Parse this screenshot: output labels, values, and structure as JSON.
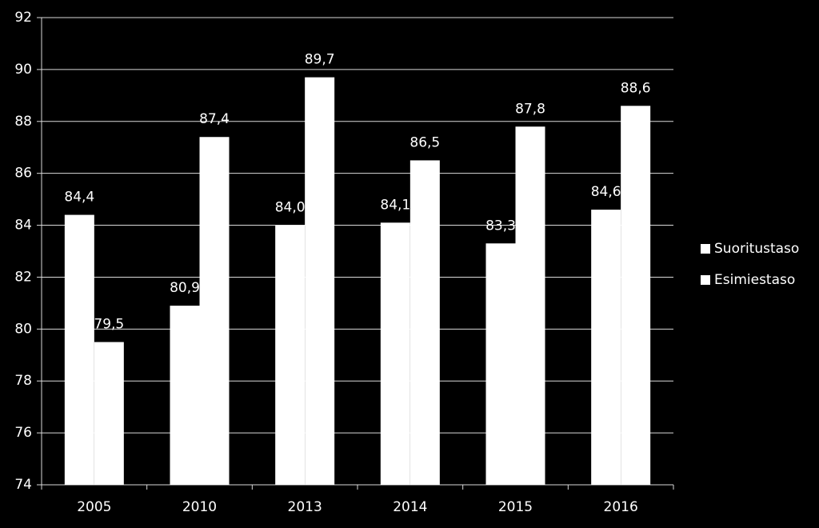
{
  "chart_data": {
    "type": "bar",
    "categories": [
      "2005",
      "2010",
      "2013",
      "2014",
      "2015",
      "2016"
    ],
    "series": [
      {
        "name": "Suoritustaso",
        "color": "#ffffff",
        "values": [
          84.4,
          80.9,
          84.0,
          84.1,
          83.3,
          84.6
        ],
        "value_labels": [
          "84,4",
          "80,9",
          "84,0",
          "84,1",
          "83,3",
          "84,6"
        ]
      },
      {
        "name": "Esimiestaso",
        "color": "#ffffff",
        "values": [
          79.5,
          87.4,
          89.7,
          86.5,
          87.8,
          88.6
        ],
        "value_labels": [
          "79,5",
          "87,4",
          "89,7",
          "86,5",
          "87,8",
          "88,6"
        ]
      }
    ],
    "ylim": [
      74,
      92
    ],
    "yticks": [
      74,
      76,
      78,
      80,
      82,
      84,
      86,
      88,
      90,
      92
    ],
    "grid": true,
    "legend": "right"
  }
}
